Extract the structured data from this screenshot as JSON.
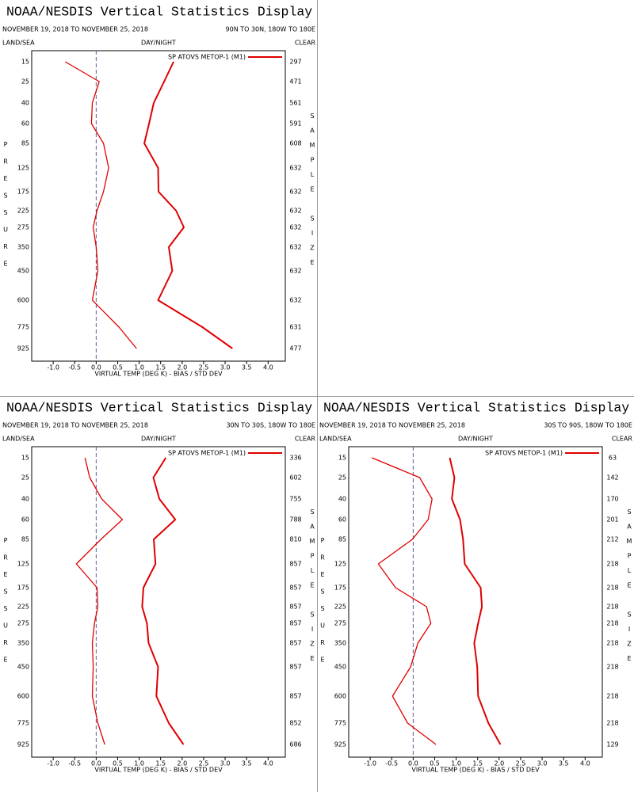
{
  "chart_data": [
    {
      "type": "line",
      "title": "NOAA/NESDIS Vertical Statistics Display",
      "date_range": "NOVEMBER 19, 2018 TO NOVEMBER 25, 2018",
      "region": "90N TO 30N, 180W TO 180E",
      "land_sea": "LAND/SEA",
      "day_night": "DAY/NIGHT",
      "clear": "CLEAR",
      "x_label": "VIRTUAL TEMP (DEG K) - BIAS / STD DEV",
      "y_label": "PRESSURE",
      "y2_label": "SAMPLE SIZE",
      "categories": [
        15,
        25,
        40,
        60,
        85,
        125,
        175,
        225,
        275,
        350,
        450,
        600,
        775,
        925
      ],
      "sample_size": [
        297,
        471,
        561,
        591,
        608,
        632,
        632,
        632,
        632,
        632,
        632,
        632,
        631,
        477
      ],
      "xlim": [
        -1.5,
        4.4
      ],
      "xticks": [
        {
          "value": -1,
          "label": "-1.0"
        },
        -0.5,
        {
          "value": 0,
          "label": "0.0"
        },
        0.5,
        {
          "value": 1,
          "label": "1.0"
        },
        1.5,
        {
          "value": 2,
          "label": "2.0"
        },
        2.5,
        {
          "value": 3,
          "label": "3.0"
        },
        3.5,
        {
          "value": 4,
          "label": "4.0"
        }
      ],
      "series": [
        {
          "name": "SP ATOVS METOP-1 (M1)",
          "color": "#e00000",
          "values": [
            -0.72,
            0.07,
            -0.09,
            -0.11,
            0.17,
            0.29,
            0.17,
            0.02,
            -0.07,
            0,
            0.04,
            -0.09,
            0.53,
            0.94
          ]
        },
        {
          "color": "#e00000",
          "values": [
            1.8,
            1.58,
            1.34,
            1.23,
            1.12,
            1.44,
            1.45,
            1.86,
            2.04,
            1.69,
            1.77,
            1.44,
            2.47,
            3.17
          ]
        }
      ]
    },
    {
      "type": "line",
      "title": "NOAA/NESDIS Vertical Statistics Display",
      "date_range": "NOVEMBER 19, 2018 TO NOVEMBER 25, 2018",
      "region": "30N TO 30S, 180W TO 180E",
      "land_sea": "LAND/SEA",
      "day_night": "DAY/NIGHT",
      "clear": "CLEAR",
      "x_label": "VIRTUAL TEMP (DEG K) - BIAS / STD DEV",
      "y_label": "PRESSURE",
      "y2_label": "SAMPLE SIZE",
      "categories": [
        15,
        25,
        40,
        60,
        85,
        125,
        175,
        225,
        275,
        350,
        450,
        600,
        775,
        925
      ],
      "sample_size": [
        336,
        602,
        755,
        788,
        810,
        857,
        857,
        857,
        857,
        857,
        857,
        857,
        852,
        686
      ],
      "xlim": [
        -1.5,
        4.4
      ],
      "xticks": [
        {
          "value": -1,
          "label": "-1.0"
        },
        -0.5,
        {
          "value": 0,
          "label": "0.0"
        },
        0.5,
        {
          "value": 1,
          "label": "1.0"
        },
        1.5,
        {
          "value": 2,
          "label": "2.0"
        },
        2.5,
        {
          "value": 3,
          "label": "3.0"
        },
        3.5,
        {
          "value": 4,
          "label": "4.0"
        }
      ],
      "series": [
        {
          "name": "SP ATOVS METOP-1 (M1)",
          "color": "#e00000",
          "values": [
            -0.26,
            -0.15,
            0.13,
            0.61,
            0.11,
            -0.46,
            0.02,
            0.04,
            -0.04,
            -0.09,
            -0.07,
            -0.09,
            0.04,
            0.2
          ]
        },
        {
          "color": "#e00000",
          "values": [
            1.62,
            1.33,
            1.47,
            1.84,
            1.34,
            1.38,
            1.1,
            1.07,
            1.18,
            1.22,
            1.44,
            1.4,
            1.69,
            2.03
          ]
        }
      ]
    },
    {
      "type": "line",
      "title": "NOAA/NESDIS Vertical Statistics Display",
      "date_range": "NOVEMBER 19, 2018 TO NOVEMBER 25, 2018",
      "region": "30S TO 90S, 180W TO 180E",
      "land_sea": "LAND/SEA",
      "day_night": "DAY/NIGHT",
      "clear": "CLEAR",
      "x_label": "VIRTUAL TEMP (DEG K) - BIAS / STD DEV",
      "y_label": "PRESSURE",
      "y2_label": "SAMPLE SIZE",
      "categories": [
        15,
        25,
        40,
        60,
        85,
        125,
        175,
        225,
        275,
        350,
        450,
        600,
        775,
        925
      ],
      "sample_size": [
        63,
        142,
        170,
        201,
        212,
        218,
        218,
        218,
        218,
        218,
        218,
        218,
        218,
        129
      ],
      "xlim": [
        -1.5,
        4.4
      ],
      "xticks": [
        {
          "value": -1,
          "label": "-1.0"
        },
        -0.5,
        {
          "value": 0,
          "label": "0.0"
        },
        0.5,
        {
          "value": 1,
          "label": "1.0"
        },
        1.5,
        {
          "value": 2,
          "label": "2.0"
        },
        2.5,
        {
          "value": 3,
          "label": "3.0"
        },
        3.5,
        {
          "value": 4,
          "label": "4.0"
        }
      ],
      "series": [
        {
          "name": "SP ATOVS METOP-1 (M1)",
          "color": "#e00000",
          "values": [
            -0.96,
            0.15,
            0.44,
            0.35,
            -0.02,
            -0.81,
            -0.41,
            0.31,
            0.41,
            0.11,
            -0.06,
            -0.48,
            -0.13,
            0.53
          ]
        },
        {
          "color": "#e00000",
          "values": [
            0.85,
            0.96,
            0.9,
            1.09,
            1.16,
            1.2,
            1.57,
            1.6,
            1.51,
            1.42,
            1.49,
            1.51,
            1.75,
            2.03
          ]
        }
      ]
    }
  ]
}
